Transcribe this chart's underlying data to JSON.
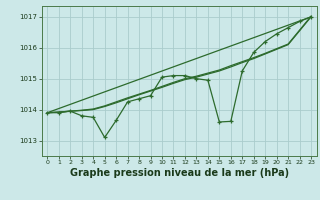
{
  "bg_color": "#cce8e8",
  "grid_color": "#aacccc",
  "line_color": "#2d6b2d",
  "xlabel": "Graphe pression niveau de la mer (hPa)",
  "xlim": [
    -0.5,
    23.5
  ],
  "ylim": [
    1012.5,
    1017.35
  ],
  "yticks": [
    1013,
    1014,
    1015,
    1016,
    1017
  ],
  "xticks": [
    0,
    1,
    2,
    3,
    4,
    5,
    6,
    7,
    8,
    9,
    10,
    11,
    12,
    13,
    14,
    15,
    16,
    17,
    18,
    19,
    20,
    21,
    22,
    23
  ],
  "line_main": [
    1013.9,
    1013.9,
    1013.95,
    1013.8,
    1013.75,
    1013.1,
    1013.65,
    1014.25,
    1014.35,
    1014.45,
    1015.05,
    1015.1,
    1015.1,
    1015.0,
    1014.95,
    1013.6,
    1013.62,
    1015.25,
    1015.85,
    1016.2,
    1016.45,
    1016.65,
    1016.85,
    1017.0
  ],
  "line_smooth1": [
    1013.9,
    1013.92,
    1013.95,
    1013.97,
    1014.0,
    1014.1,
    1014.22,
    1014.35,
    1014.48,
    1014.6,
    1014.72,
    1014.85,
    1014.97,
    1015.05,
    1015.15,
    1015.25,
    1015.38,
    1015.52,
    1015.65,
    1015.8,
    1015.95,
    1016.1,
    1016.55,
    1017.0
  ],
  "line_smooth2": [
    1013.9,
    1013.92,
    1013.95,
    1013.98,
    1014.02,
    1014.12,
    1014.25,
    1014.38,
    1014.5,
    1014.62,
    1014.75,
    1014.88,
    1015.0,
    1015.08,
    1015.18,
    1015.28,
    1015.42,
    1015.55,
    1015.68,
    1015.82,
    1015.97,
    1016.12,
    1016.57,
    1017.02
  ],
  "trend_x": [
    0,
    23
  ],
  "trend_y": [
    1013.9,
    1017.0
  ]
}
